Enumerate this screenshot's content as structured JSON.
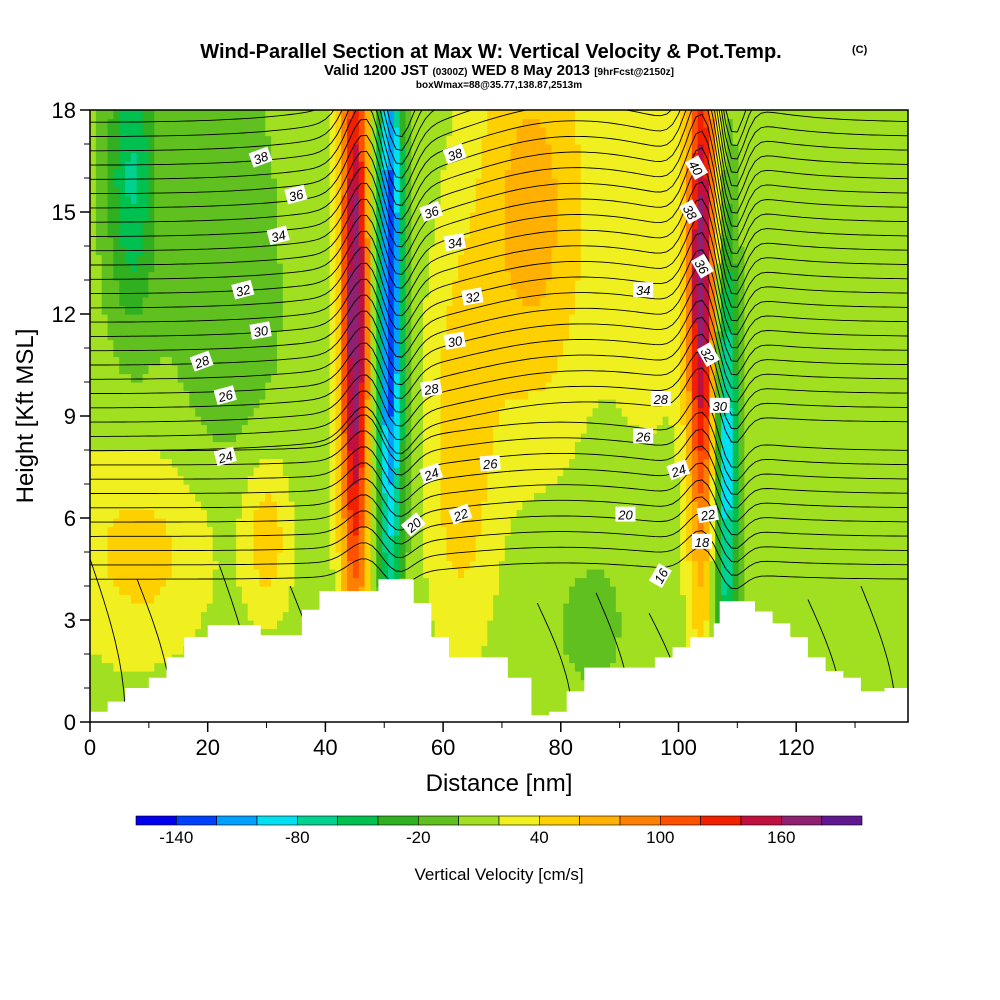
{
  "header": {
    "title": "Wind-Parallel Section at Max W: Vertical Velocity & Pot.Temp.",
    "title_mark": "(C)",
    "valid_prefix": "Valid 1200 JST",
    "valid_utc": "(0300Z)",
    "valid_date": "WED 8 May 2013",
    "forecast_tag": "[9hrFcst@2150z]",
    "box_info": "boxWmax=88@35.77,138.87,2513m"
  },
  "colorbar": {
    "label": "Vertical Velocity [cm/s]",
    "tick_labels": [
      "-140",
      "-80",
      "-20",
      "40",
      "100",
      "160"
    ],
    "levels": [
      -160,
      -140,
      -120,
      -100,
      -80,
      -60,
      -40,
      -20,
      0,
      20,
      40,
      60,
      80,
      100,
      120,
      140,
      160,
      180,
      200
    ],
    "colors": [
      "#0000ee",
      "#0040ff",
      "#00a0ff",
      "#00e0f0",
      "#00d090",
      "#00c050",
      "#30b020",
      "#60c020",
      "#a0e020",
      "#f0f020",
      "#ffd000",
      "#ffb000",
      "#ff8000",
      "#ff5000",
      "#f02000",
      "#c01040",
      "#902070",
      "#601890"
    ]
  },
  "chart_data": {
    "type": "heatmap",
    "title": "Wind-Parallel Section at Max W: Vertical Velocity & Pot.Temp.",
    "xlabel": "Distance [nm]",
    "ylabel": "Height [Kft MSL]",
    "xlim": [
      0,
      139
    ],
    "ylim": [
      0,
      18
    ],
    "x_ticks": [
      0,
      20,
      40,
      60,
      80,
      100,
      120
    ],
    "y_ticks": [
      0,
      3,
      6,
      9,
      12,
      15,
      18
    ],
    "grid": false,
    "field": "Vertical Velocity [cm/s]",
    "background_w": 10,
    "w_features": [
      {
        "x": 45,
        "y": 12,
        "sx": 1.8,
        "sy": 7,
        "w": 170
      },
      {
        "x": 51,
        "y": 12.5,
        "sx": 1.6,
        "sy": 7,
        "w": -150
      },
      {
        "x": 104,
        "y": 13,
        "sx": 1.8,
        "sy": 6,
        "w": 160
      },
      {
        "x": 108,
        "y": 8,
        "sx": 1.5,
        "sy": 5,
        "w": -110
      },
      {
        "x": 75,
        "y": 15,
        "sx": 7,
        "sy": 4.5,
        "w": 60
      },
      {
        "x": 10,
        "y": 5,
        "sx": 10,
        "sy": 2.2,
        "w": 40
      },
      {
        "x": 30,
        "y": 5.5,
        "sx": 3,
        "sy": 1.8,
        "w": 45
      },
      {
        "x": 7,
        "y": 16,
        "sx": 3,
        "sy": 3,
        "w": -70
      },
      {
        "x": 23,
        "y": 12,
        "sx": 8,
        "sy": 7,
        "w": -20
      },
      {
        "x": 63,
        "y": 8,
        "sx": 4,
        "sy": 4,
        "w": 45
      },
      {
        "x": 95,
        "y": 14,
        "sx": 5,
        "sy": 4,
        "w": 25
      },
      {
        "x": 125,
        "y": 15,
        "sx": 6,
        "sy": 5,
        "w": 5
      },
      {
        "x": 85,
        "y": 3,
        "sx": 6,
        "sy": 2,
        "w": -15
      }
    ],
    "terrain": [
      [
        0,
        0.3
      ],
      [
        3,
        0.3
      ],
      [
        3,
        0.6
      ],
      [
        6,
        0.6
      ],
      [
        6,
        1.0
      ],
      [
        10,
        1.0
      ],
      [
        10,
        1.3
      ],
      [
        13,
        1.3
      ],
      [
        13,
        1.9
      ],
      [
        16,
        1.9
      ],
      [
        16,
        2.5
      ],
      [
        20,
        2.5
      ],
      [
        20,
        2.85
      ],
      [
        29,
        2.85
      ],
      [
        29,
        2.55
      ],
      [
        36,
        2.55
      ],
      [
        36,
        3.3
      ],
      [
        39,
        3.3
      ],
      [
        39,
        3.85
      ],
      [
        49,
        3.85
      ],
      [
        49,
        4.2
      ],
      [
        55,
        4.2
      ],
      [
        55,
        3.5
      ],
      [
        58,
        3.5
      ],
      [
        58,
        2.5
      ],
      [
        61,
        2.5
      ],
      [
        61,
        1.9
      ],
      [
        71,
        1.9
      ],
      [
        71,
        1.3
      ],
      [
        75,
        1.3
      ],
      [
        75,
        0.2
      ],
      [
        78,
        0.2
      ],
      [
        78,
        0.3
      ],
      [
        81,
        0.3
      ],
      [
        81,
        0.9
      ],
      [
        84,
        0.9
      ],
      [
        84,
        1.6
      ],
      [
        96,
        1.6
      ],
      [
        96,
        1.9
      ],
      [
        99,
        1.9
      ],
      [
        99,
        2.2
      ],
      [
        102,
        2.2
      ],
      [
        102,
        2.5
      ],
      [
        106,
        2.5
      ],
      [
        106,
        2.9
      ],
      [
        107,
        2.9
      ],
      [
        107,
        3.55
      ],
      [
        113,
        3.55
      ],
      [
        113,
        3.25
      ],
      [
        116,
        3.25
      ],
      [
        116,
        2.9
      ],
      [
        119,
        2.9
      ],
      [
        119,
        2.5
      ],
      [
        122,
        2.5
      ],
      [
        122,
        1.9
      ],
      [
        125,
        1.9
      ],
      [
        125,
        1.5
      ],
      [
        128,
        1.5
      ],
      [
        128,
        1.3
      ],
      [
        131,
        1.3
      ],
      [
        131,
        0.9
      ],
      [
        135,
        0.9
      ],
      [
        135,
        1.0
      ],
      [
        139,
        1.0
      ]
    ],
    "contour_field": "Potential Temperature",
    "contour_levels_labeled": [
      {
        "label": "38",
        "x": 29,
        "y": 16.6,
        "rot": -20
      },
      {
        "label": "36",
        "x": 35,
        "y": 15.5,
        "rot": -15
      },
      {
        "label": "34",
        "x": 32,
        "y": 14.3,
        "rot": -15
      },
      {
        "label": "32",
        "x": 26,
        "y": 12.7,
        "rot": -15
      },
      {
        "label": "30",
        "x": 29,
        "y": 11.5,
        "rot": -10
      },
      {
        "label": "28",
        "x": 19,
        "y": 10.6,
        "rot": -20
      },
      {
        "label": "26",
        "x": 23,
        "y": 9.6,
        "rot": -15
      },
      {
        "label": "24",
        "x": 23,
        "y": 7.8,
        "rot": -15
      },
      {
        "label": "38",
        "x": 62,
        "y": 16.7,
        "rot": -20
      },
      {
        "label": "36",
        "x": 58,
        "y": 15.0,
        "rot": -20
      },
      {
        "label": "34",
        "x": 62,
        "y": 14.1,
        "rot": -10
      },
      {
        "label": "32",
        "x": 65,
        "y": 12.5,
        "rot": -10
      },
      {
        "label": "30",
        "x": 62,
        "y": 11.2,
        "rot": -10
      },
      {
        "label": "28",
        "x": 58,
        "y": 9.8,
        "rot": -10
      },
      {
        "label": "26",
        "x": 68,
        "y": 7.6,
        "rot": -5
      },
      {
        "label": "24",
        "x": 58,
        "y": 7.3,
        "rot": -20
      },
      {
        "label": "22",
        "x": 63,
        "y": 6.1,
        "rot": -20
      },
      {
        "label": "20",
        "x": 55,
        "y": 5.8,
        "rot": -40
      },
      {
        "label": "34",
        "x": 94,
        "y": 12.7,
        "rot": 0
      },
      {
        "label": "28",
        "x": 97,
        "y": 9.5,
        "rot": 0
      },
      {
        "label": "26",
        "x": 94,
        "y": 8.4,
        "rot": 0
      },
      {
        "label": "24",
        "x": 100,
        "y": 7.4,
        "rot": -20
      },
      {
        "label": "20",
        "x": 91,
        "y": 6.1,
        "rot": 0
      },
      {
        "label": "22",
        "x": 105,
        "y": 6.1,
        "rot": -10
      },
      {
        "label": "18",
        "x": 104,
        "y": 5.3,
        "rot": 0
      },
      {
        "label": "16",
        "x": 97,
        "y": 4.3,
        "rot": -60
      },
      {
        "label": "40",
        "x": 103,
        "y": 16.3,
        "rot": 60
      },
      {
        "label": "38",
        "x": 102,
        "y": 15.0,
        "rot": 60
      },
      {
        "label": "36",
        "x": 104,
        "y": 13.4,
        "rot": 60
      },
      {
        "label": "32",
        "x": 105,
        "y": 10.8,
        "rot": 60
      },
      {
        "label": "30",
        "x": 107,
        "y": 9.3,
        "rot": 0
      }
    ]
  }
}
